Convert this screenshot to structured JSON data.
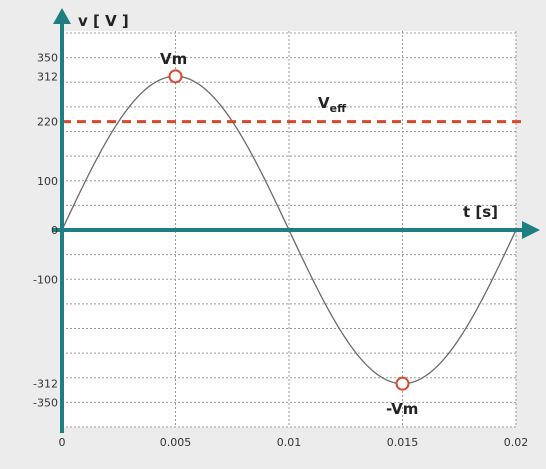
{
  "chart_data": {
    "type": "line",
    "xlabel": "t [s]",
    "ylabel": "v [ V ]",
    "xlim": [
      0,
      0.02
    ],
    "ylim": [
      -400,
      400
    ],
    "x_ticks": [
      "0",
      "0.005",
      "0.01",
      "0.015",
      "0.02"
    ],
    "y_ticks": [
      "350",
      "312",
      "220",
      "100",
      "0",
      "-100",
      "-312",
      "-350"
    ],
    "grid": true,
    "series": [
      {
        "function": "sine",
        "amplitude": 312,
        "period": 0.02,
        "x": [
          0,
          0.0025,
          0.005,
          0.0075,
          0.01,
          0.0125,
          0.015,
          0.0175,
          0.02
        ],
        "y": [
          0,
          220.6,
          312,
          220.6,
          0,
          -220.6,
          -312,
          -220.6,
          0
        ]
      }
    ],
    "reference_line": {
      "label_main": "V",
      "label_sub": "eff",
      "value": 220
    },
    "annotations": [
      {
        "label": "Vm",
        "x": 0.005,
        "y": 312
      },
      {
        "label": "-Vm",
        "x": 0.015,
        "y": -312
      }
    ],
    "colors": {
      "curve": "#6b6b6b",
      "axes": "#1f7f80",
      "reference": "#d9482b",
      "markers": "#d9482b",
      "grid": "#9a9a9a"
    }
  }
}
